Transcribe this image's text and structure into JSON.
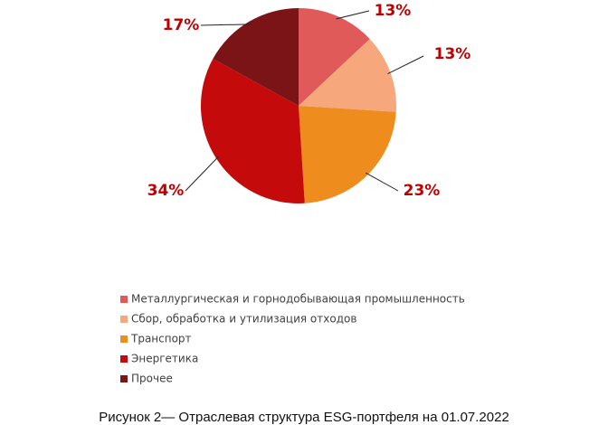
{
  "chart_data": {
    "type": "pie",
    "categories": [
      "Металлургическая и горнодобывающая промышленность",
      "Сбор, обработка и утилизация отходов",
      "Транспорт",
      "Энергетика",
      "Прочее"
    ],
    "values": [
      13,
      13,
      23,
      34,
      17
    ],
    "value_labels": [
      "13%",
      "13%",
      "23%",
      "34%",
      "17%"
    ],
    "colors": [
      "#e05a5a",
      "#f7a77c",
      "#ef8c1e",
      "#c40a0a",
      "#7a1416"
    ],
    "legend": "bottom",
    "caption": "Рисунок 2— Отраслевая структура ESG-портфеля на 01.07.2022"
  }
}
